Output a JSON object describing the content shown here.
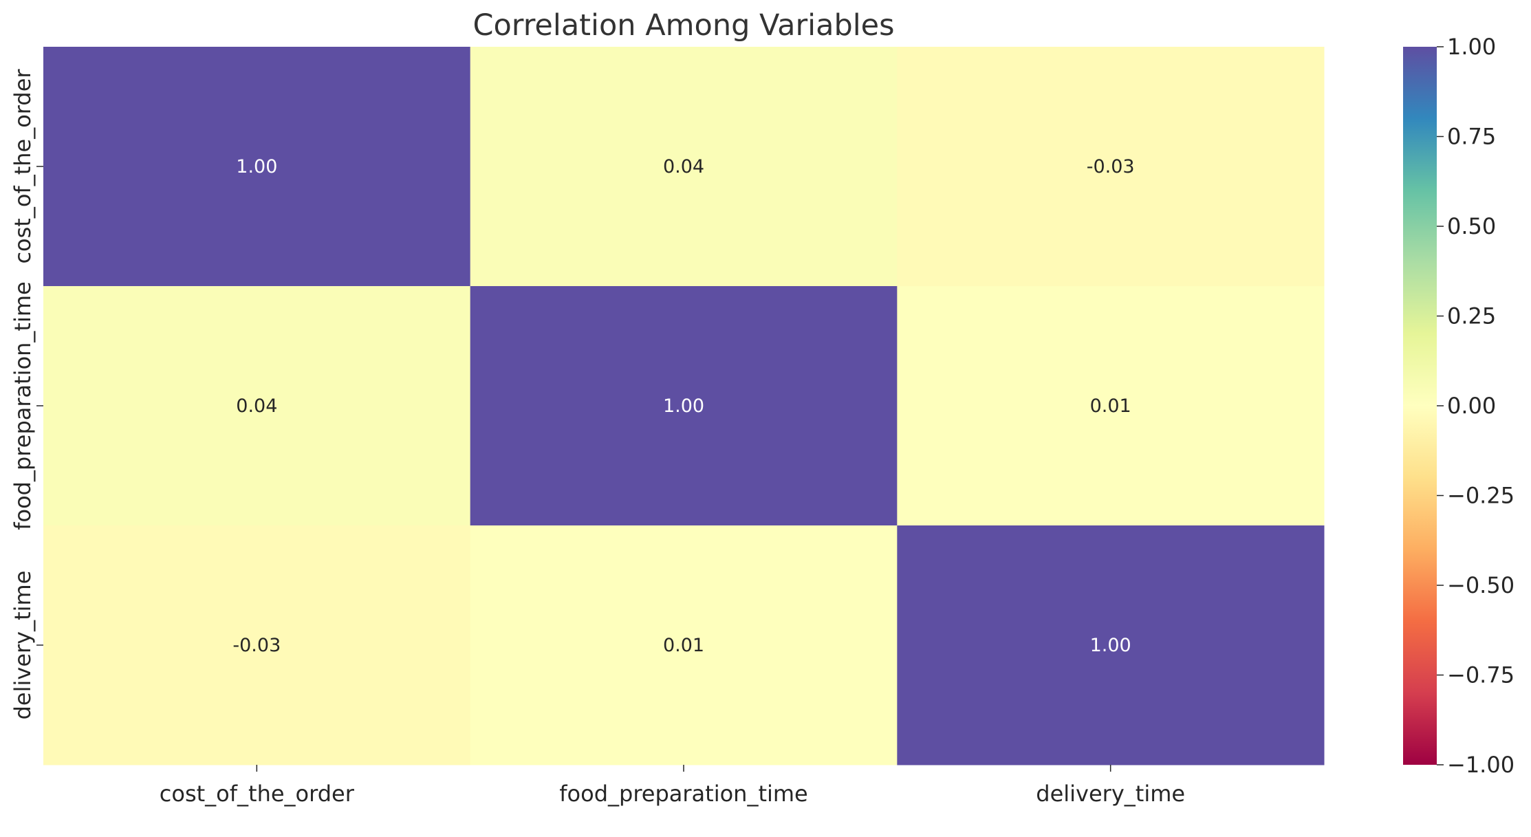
{
  "chart_data": {
    "type": "heatmap",
    "title": "Correlation Among Variables",
    "x_categories": [
      "cost_of_the_order",
      "food_preparation_time",
      "delivery_time"
    ],
    "y_categories": [
      "cost_of_the_order",
      "food_preparation_time",
      "delivery_time"
    ],
    "values": [
      [
        1.0,
        0.04,
        -0.03
      ],
      [
        0.04,
        1.0,
        0.01
      ],
      [
        -0.03,
        0.01,
        1.0
      ]
    ],
    "cell_labels": [
      [
        "1.00",
        "0.04",
        "-0.03"
      ],
      [
        "0.04",
        "1.00",
        "0.01"
      ],
      [
        "-0.03",
        "0.01",
        "1.00"
      ]
    ],
    "colormap": "Spectral",
    "vmin": -1.0,
    "vmax": 1.0,
    "colorbar": {
      "ticks": [
        1.0,
        0.75,
        0.5,
        0.25,
        0.0,
        -0.25,
        -0.5,
        -0.75,
        -1.0
      ],
      "tick_labels": [
        "1.00",
        "0.75",
        "0.50",
        "0.25",
        "0.00",
        "−0.25",
        "−0.50",
        "−0.75",
        "−1.00"
      ]
    },
    "grid": false,
    "legend": "colorbar-right"
  }
}
